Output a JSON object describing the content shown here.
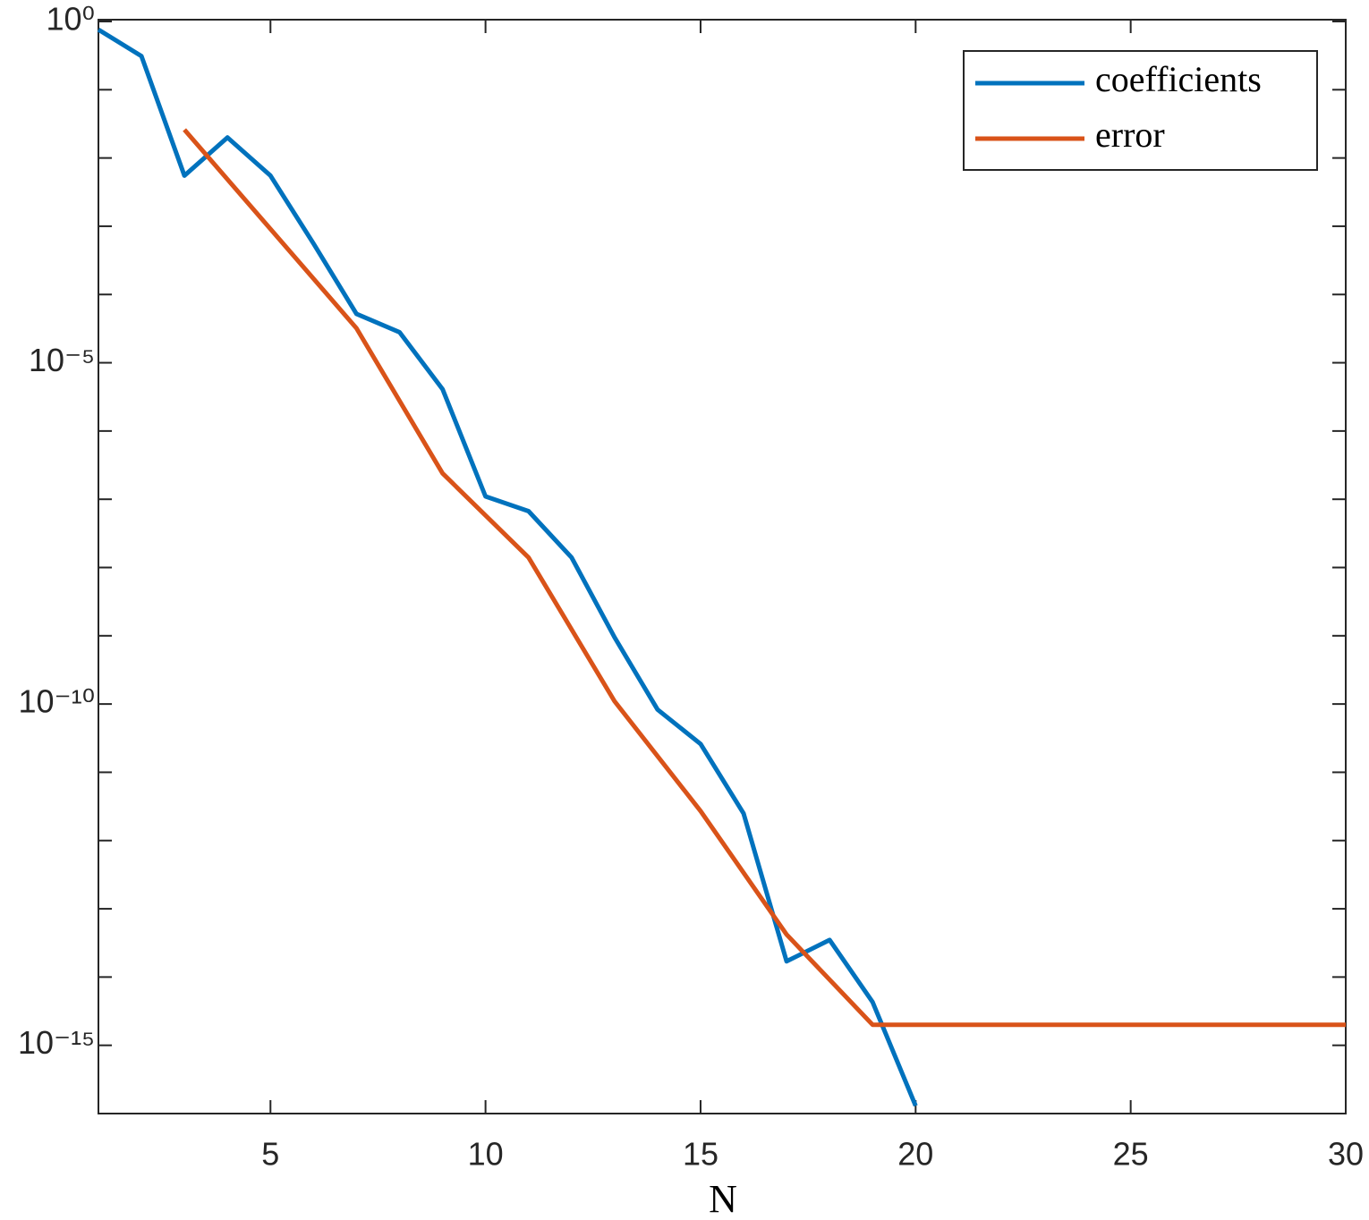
{
  "chart_data": {
    "type": "line",
    "x_label": "N",
    "xlim": [
      1,
      30
    ],
    "xticks": [
      5,
      10,
      15,
      20,
      25,
      30
    ],
    "ylim": [
      1e-16,
      1
    ],
    "log_y": true,
    "yticks": [
      {
        "value": 1,
        "label": "10⁰"
      },
      {
        "value": 1e-05,
        "label": "10⁻⁵"
      },
      {
        "value": 1e-10,
        "label": "10⁻¹⁰"
      },
      {
        "value": 1e-15,
        "label": "10⁻¹⁵"
      }
    ],
    "yminorticks": [
      0.1,
      0.01,
      0.001,
      0.0001,
      1e-06,
      1e-07,
      1e-08,
      1e-09,
      1e-11,
      1e-12,
      1e-13,
      1e-14
    ],
    "legend": "upper right",
    "series": [
      {
        "name": "coefficients",
        "color": "#0072BD",
        "x": [
          1,
          2,
          3,
          4,
          5,
          6,
          7,
          8,
          9,
          10,
          11,
          12,
          13,
          14,
          15,
          16,
          17,
          18,
          19,
          20
        ],
        "values": [
          0.76,
          0.31,
          0.0055,
          0.02,
          0.0055,
          0.00056,
          5.2e-05,
          2.8e-05,
          4.1e-06,
          1.1e-07,
          6.7e-08,
          1.4e-08,
          9.5e-10,
          8.3e-11,
          2.6e-11,
          2.5e-12,
          1.7e-14,
          3.5e-14,
          4.3e-15,
          1.3e-16
        ]
      },
      {
        "name": "error",
        "color": "#D95319",
        "x": [
          3,
          7,
          9,
          11,
          13,
          15,
          17,
          19,
          30
        ],
        "values": [
          0.026,
          3.2e-05,
          2.4e-07,
          1.4e-08,
          1.1e-10,
          2.7e-12,
          4.2e-14,
          2e-15,
          2e-15
        ]
      }
    ]
  }
}
